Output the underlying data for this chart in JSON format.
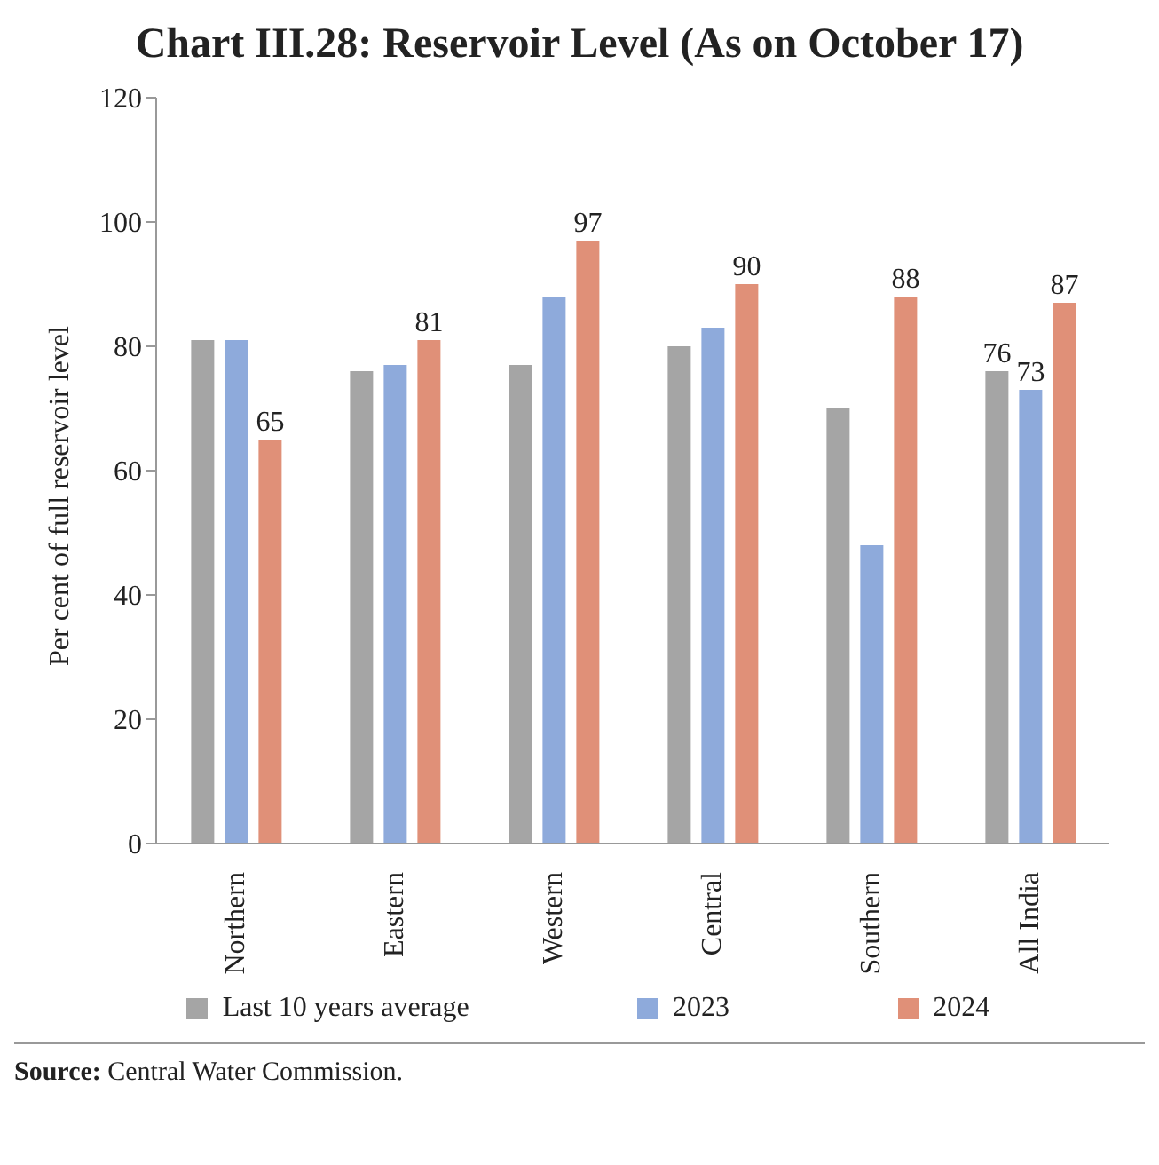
{
  "chart_data": {
    "type": "bar",
    "title": "Chart III.28: Reservoir Level (As on October 17)",
    "ylabel": "Per cent of full reservoir level",
    "categories": [
      "Northern",
      "Eastern",
      "Western",
      "Central",
      "Southern",
      "All India"
    ],
    "series": [
      {
        "name": "Last 10 years average",
        "color": "#a5a5a5",
        "values": [
          81,
          76,
          77,
          80,
          70,
          76
        ],
        "value_labels": [
          null,
          null,
          null,
          null,
          null,
          "76"
        ]
      },
      {
        "name": "2023",
        "color": "#8eaadb",
        "values": [
          81,
          77,
          88,
          83,
          48,
          73
        ],
        "value_labels": [
          null,
          null,
          null,
          null,
          null,
          "73"
        ]
      },
      {
        "name": "2024",
        "color": "#e09078",
        "values": [
          65,
          81,
          97,
          90,
          88,
          87
        ],
        "value_labels": [
          "65",
          "81",
          "97",
          "90",
          "88",
          "87"
        ]
      }
    ],
    "ylim": [
      0,
      120
    ],
    "yticks": [
      0,
      20,
      40,
      60,
      80,
      100,
      120
    ],
    "grid": false,
    "legend": "bottom",
    "annotations": [
      "Source: Central Water Commission."
    ]
  }
}
